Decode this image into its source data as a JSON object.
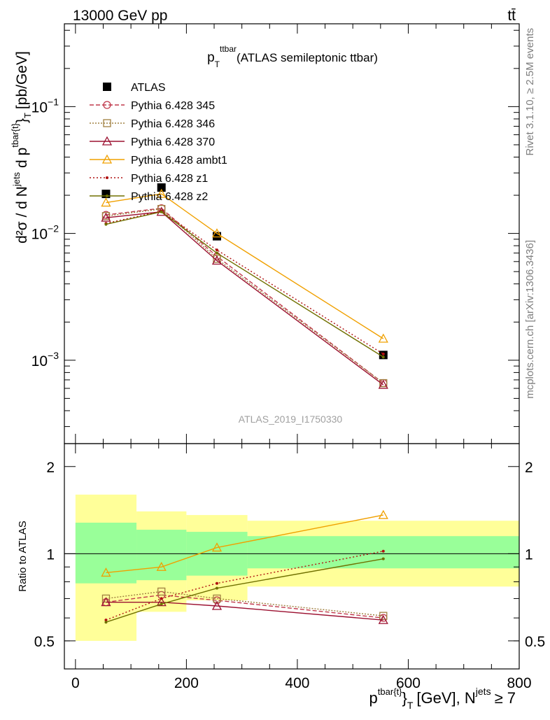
{
  "header": {
    "left": "13000 GeV pp",
    "right": "tt̄"
  },
  "main_title": {
    "base": "p",
    "sup": "ttbar",
    "sub": "T",
    "desc": "(ATLAS semileptonic ttbar)"
  },
  "side_text": {
    "rivet": "Rivet 3.1.10, ≥ 2.5M events",
    "mcplots": "mcplots.cern.ch [arXiv:1306.3436]"
  },
  "watermark": "ATLAS_2019_I1750330",
  "y_label": {
    "d2sigma": "d²σ / d N",
    "jets_sup": "jets",
    "dp": "d p",
    "tbar_sup": "tbar{t}",
    "close": "}",
    "t_sub": "T",
    "unit": "[pb/GeV]"
  },
  "ratio_label": "Ratio to ATLAS",
  "x_label": {
    "p": "p",
    "p_sup": "tbar{t}",
    "close": "}",
    "t_sub": "T",
    "unit": "[GeV], N",
    "jets_sup": "jets",
    "cond": "≥ 7"
  },
  "colors": {
    "p345": "#c0394c",
    "p346": "#a08040",
    "p370": "#9b1030",
    "ambt1": "#f0a000",
    "z1": "#b01010",
    "z2": "#707000",
    "band_inner": "#99ff99",
    "band_outer": "#ffff99"
  },
  "chart_data": [
    {
      "type": "line",
      "scale": "log",
      "xlim": [
        -20,
        800
      ],
      "ylim": [
        0.00022,
        0.45
      ],
      "y_ticks": [
        {
          "value": 0.001,
          "base": "10",
          "exp": "−3"
        },
        {
          "value": 0.01,
          "base": "10",
          "exp": "−2"
        },
        {
          "value": 0.1,
          "base": "10",
          "exp": "−1"
        }
      ],
      "series": [
        {
          "name": "ATLAS",
          "key": "atlas",
          "x": [
            55,
            155,
            255,
            555
          ],
          "y": [
            0.0205,
            0.023,
            0.0095,
            0.0011
          ]
        },
        {
          "name": "Pythia 6.428 345",
          "key": "p345",
          "x": [
            55,
            155,
            255,
            555
          ],
          "y": [
            0.014,
            0.0158,
            0.0066,
            0.00066
          ]
        },
        {
          "name": "Pythia 6.428 346",
          "key": "p346",
          "x": [
            55,
            155,
            255,
            555
          ],
          "y": [
            0.0137,
            0.0156,
            0.0063,
            0.00066
          ]
        },
        {
          "name": "Pythia 6.428 370",
          "key": "p370",
          "x": [
            55,
            155,
            255,
            555
          ],
          "y": [
            0.0133,
            0.0148,
            0.0061,
            0.00064
          ]
        },
        {
          "name": "Pythia 6.428 ambt1",
          "key": "ambt1",
          "x": [
            55,
            155,
            255,
            555
          ],
          "y": [
            0.0175,
            0.0205,
            0.01,
            0.00148
          ]
        },
        {
          "name": "Pythia 6.428 z1",
          "key": "z1",
          "x": [
            55,
            155,
            255,
            555
          ],
          "y": [
            0.012,
            0.015,
            0.0074,
            0.00112
          ]
        },
        {
          "name": "Pythia 6.428 z2",
          "key": "z2",
          "x": [
            55,
            155,
            255,
            555
          ],
          "y": [
            0.0118,
            0.0148,
            0.007,
            0.00106
          ]
        }
      ]
    },
    {
      "type": "line",
      "scale": "log",
      "ylabel": "Ratio to ATLAS",
      "xlim": [
        -20,
        800
      ],
      "ylim": [
        0.4,
        2.4
      ],
      "x_ticks": [
        0,
        200,
        400,
        600,
        800
      ],
      "y_ticks": [
        {
          "value": 0.5,
          "label": "0.5"
        },
        {
          "value": 1,
          "label": "1"
        },
        {
          "value": 2,
          "label": "2"
        }
      ],
      "bands": [
        {
          "x0": 0,
          "x1": 110,
          "inner": [
            0.79,
            1.28
          ],
          "outer": [
            0.5,
            1.6
          ]
        },
        {
          "x0": 110,
          "x1": 200,
          "inner": [
            0.81,
            1.21
          ],
          "outer": [
            0.63,
            1.4
          ]
        },
        {
          "x0": 200,
          "x1": 310,
          "inner": [
            0.84,
            1.19
          ],
          "outer": [
            0.69,
            1.36
          ]
        },
        {
          "x0": 310,
          "x1": 800,
          "inner": [
            0.89,
            1.15
          ],
          "outer": [
            0.77,
            1.3
          ]
        }
      ],
      "series": [
        {
          "name": "Pythia 6.428 345",
          "key": "p345",
          "x": [
            55,
            155,
            255,
            555
          ],
          "y": [
            0.68,
            0.72,
            0.69,
            0.6
          ]
        },
        {
          "name": "Pythia 6.428 346",
          "key": "p346",
          "x": [
            55,
            155,
            255,
            555
          ],
          "y": [
            0.7,
            0.74,
            0.7,
            0.61
          ]
        },
        {
          "name": "Pythia 6.428 370",
          "key": "p370",
          "x": [
            55,
            155,
            255,
            555
          ],
          "y": [
            0.68,
            0.68,
            0.66,
            0.59
          ]
        },
        {
          "name": "Pythia 6.428 ambt1",
          "key": "ambt1",
          "x": [
            55,
            155,
            255,
            555
          ],
          "y": [
            0.86,
            0.9,
            1.05,
            1.36
          ]
        },
        {
          "name": "Pythia 6.428 z1",
          "key": "z1",
          "x": [
            55,
            155,
            255,
            555
          ],
          "y": [
            0.59,
            0.7,
            0.79,
            1.02
          ]
        },
        {
          "name": "Pythia 6.428 z2",
          "key": "z2",
          "x": [
            55,
            155,
            255,
            555
          ],
          "y": [
            0.58,
            0.67,
            0.76,
            0.96
          ]
        }
      ]
    }
  ]
}
